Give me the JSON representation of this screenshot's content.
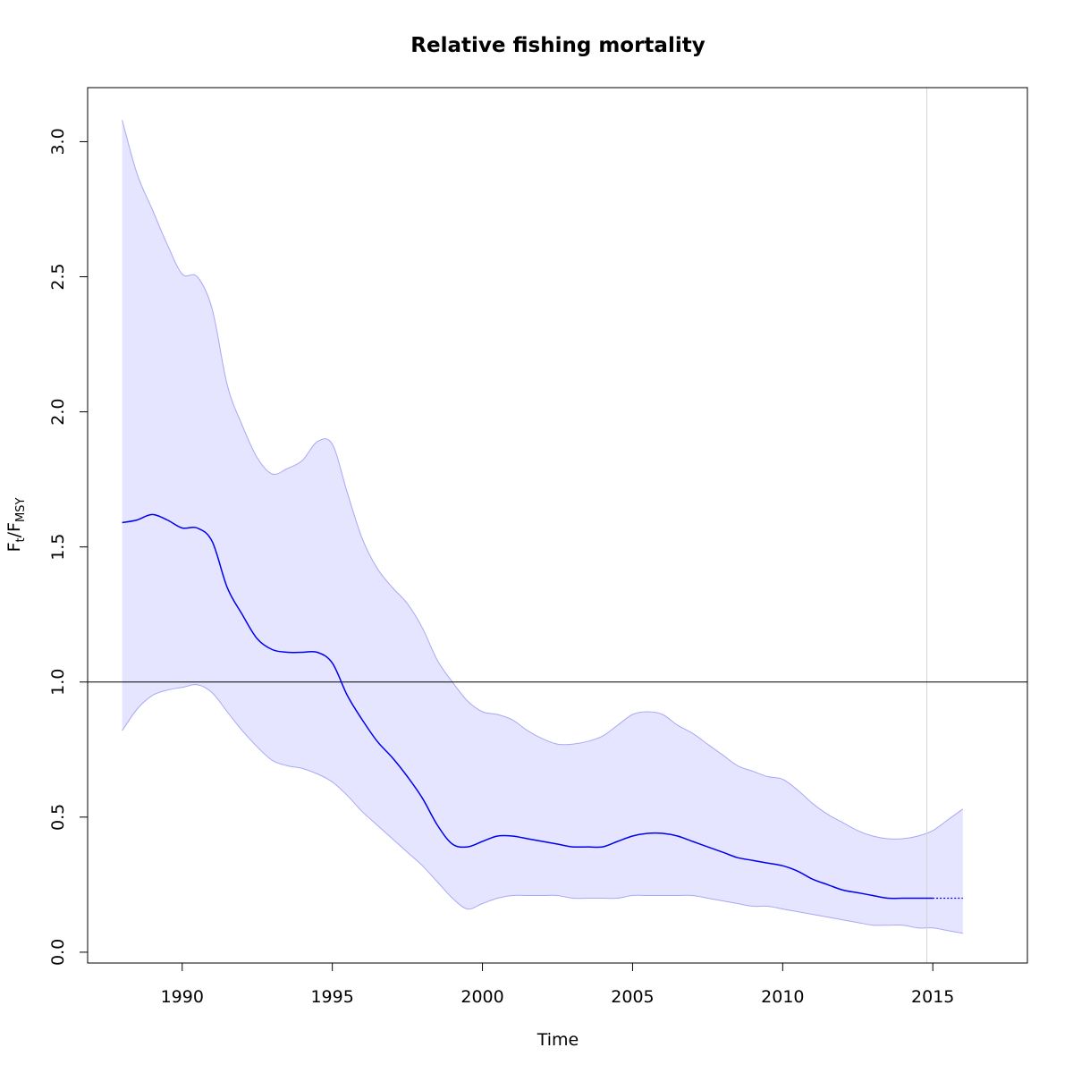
{
  "chart_data": {
    "type": "line",
    "title": "Relative fishing mortality",
    "xlabel": "Time",
    "ylabel": {
      "main": "F",
      "sub_t": "t",
      "slash": "/",
      "main2": "F",
      "sub_msy": "MSY"
    },
    "xlim": [
      1986.85,
      2018.15
    ],
    "ylim": [
      -0.04,
      3.2
    ],
    "x_ticks": [
      1990,
      1995,
      2000,
      2005,
      2010,
      2015
    ],
    "x_tick_labels": [
      "1990",
      "1995",
      "2000",
      "2005",
      "2010",
      "2015"
    ],
    "y_ticks": [
      0.0,
      0.5,
      1.0,
      1.5,
      2.0,
      2.5,
      3.0
    ],
    "y_tick_labels": [
      "0.0",
      "0.5",
      "1.0",
      "1.5",
      "2.0",
      "2.5",
      "3.0"
    ],
    "reference_line_y": 1.0,
    "vertical_line_x": 2014.8,
    "colors": {
      "line": "#0000ee",
      "band_fill": "#e5e5ff",
      "band_edge": "#a8a8f5",
      "reference": "#000000",
      "vertical": "#d3d3d3"
    },
    "series": [
      {
        "role": "estimate",
        "x": [
          1988.0,
          1988.5,
          1989.0,
          1989.5,
          1990.0,
          1990.5,
          1991.0,
          1991.5,
          1992.0,
          1992.5,
          1993.0,
          1993.5,
          1994.0,
          1994.5,
          1995.0,
          1995.5,
          1996.0,
          1996.5,
          1997.0,
          1997.5,
          1998.0,
          1998.5,
          1999.0,
          1999.5,
          2000.0,
          2000.5,
          2001.0,
          2001.5,
          2002.0,
          2002.5,
          2003.0,
          2003.5,
          2004.0,
          2004.5,
          2005.0,
          2005.5,
          2006.0,
          2006.5,
          2007.0,
          2007.5,
          2008.0,
          2008.5,
          2009.0,
          2009.5,
          2010.0,
          2010.5,
          2011.0,
          2011.5,
          2012.0,
          2012.5,
          2013.0,
          2013.5,
          2014.0,
          2014.5,
          2015.0
        ],
        "y": [
          1.59,
          1.6,
          1.62,
          1.6,
          1.57,
          1.57,
          1.52,
          1.35,
          1.25,
          1.16,
          1.12,
          1.11,
          1.11,
          1.11,
          1.07,
          0.95,
          0.86,
          0.78,
          0.72,
          0.65,
          0.57,
          0.47,
          0.4,
          0.39,
          0.41,
          0.43,
          0.43,
          0.42,
          0.41,
          0.4,
          0.39,
          0.39,
          0.39,
          0.41,
          0.43,
          0.44,
          0.44,
          0.43,
          0.41,
          0.39,
          0.37,
          0.35,
          0.34,
          0.33,
          0.32,
          0.3,
          0.27,
          0.25,
          0.23,
          0.22,
          0.21,
          0.2,
          0.2,
          0.2,
          0.2
        ]
      },
      {
        "role": "forecast",
        "x": [
          2015.0,
          2016.0
        ],
        "y": [
          0.2,
          0.2
        ]
      },
      {
        "role": "upper_ci",
        "x": [
          1988.0,
          1988.5,
          1989.0,
          1989.5,
          1990.0,
          1990.5,
          1991.0,
          1991.5,
          1992.0,
          1992.5,
          1993.0,
          1993.5,
          1994.0,
          1994.5,
          1995.0,
          1995.5,
          1996.0,
          1996.5,
          1997.0,
          1997.5,
          1998.0,
          1998.5,
          1999.0,
          1999.5,
          2000.0,
          2000.5,
          2001.0,
          2001.5,
          2002.0,
          2002.5,
          2003.0,
          2003.5,
          2004.0,
          2004.5,
          2005.0,
          2005.5,
          2006.0,
          2006.5,
          2007.0,
          2007.5,
          2008.0,
          2008.5,
          2009.0,
          2009.5,
          2010.0,
          2010.5,
          2011.0,
          2011.5,
          2012.0,
          2012.5,
          2013.0,
          2013.5,
          2014.0,
          2014.5,
          2015.0,
          2015.5,
          2016.0
        ],
        "y": [
          3.08,
          2.88,
          2.75,
          2.62,
          2.51,
          2.5,
          2.38,
          2.1,
          1.95,
          1.83,
          1.77,
          1.79,
          1.82,
          1.89,
          1.88,
          1.7,
          1.53,
          1.42,
          1.35,
          1.29,
          1.2,
          1.08,
          1.0,
          0.93,
          0.89,
          0.88,
          0.86,
          0.82,
          0.79,
          0.77,
          0.77,
          0.78,
          0.8,
          0.84,
          0.88,
          0.89,
          0.88,
          0.84,
          0.81,
          0.77,
          0.73,
          0.69,
          0.67,
          0.65,
          0.64,
          0.6,
          0.55,
          0.51,
          0.48,
          0.45,
          0.43,
          0.42,
          0.42,
          0.43,
          0.45,
          0.49,
          0.53
        ]
      },
      {
        "role": "lower_ci",
        "x": [
          1988.0,
          1988.5,
          1989.0,
          1989.5,
          1990.0,
          1990.5,
          1991.0,
          1991.5,
          1992.0,
          1992.5,
          1993.0,
          1993.5,
          1994.0,
          1994.5,
          1995.0,
          1995.5,
          1996.0,
          1996.5,
          1997.0,
          1997.5,
          1998.0,
          1998.5,
          1999.0,
          1999.5,
          2000.0,
          2000.5,
          2001.0,
          2001.5,
          2002.0,
          2002.5,
          2003.0,
          2003.5,
          2004.0,
          2004.5,
          2005.0,
          2005.5,
          2006.0,
          2006.5,
          2007.0,
          2007.5,
          2008.0,
          2008.5,
          2009.0,
          2009.5,
          2010.0,
          2010.5,
          2011.0,
          2011.5,
          2012.0,
          2012.5,
          2013.0,
          2013.5,
          2014.0,
          2014.5,
          2015.0,
          2015.5,
          2016.0
        ],
        "y": [
          0.82,
          0.9,
          0.95,
          0.97,
          0.98,
          0.99,
          0.96,
          0.89,
          0.82,
          0.76,
          0.71,
          0.69,
          0.68,
          0.66,
          0.63,
          0.58,
          0.52,
          0.47,
          0.42,
          0.37,
          0.32,
          0.26,
          0.2,
          0.16,
          0.18,
          0.2,
          0.21,
          0.21,
          0.21,
          0.21,
          0.2,
          0.2,
          0.2,
          0.2,
          0.21,
          0.21,
          0.21,
          0.21,
          0.21,
          0.2,
          0.19,
          0.18,
          0.17,
          0.17,
          0.16,
          0.15,
          0.14,
          0.13,
          0.12,
          0.11,
          0.1,
          0.1,
          0.1,
          0.09,
          0.09,
          0.08,
          0.07
        ]
      }
    ]
  }
}
